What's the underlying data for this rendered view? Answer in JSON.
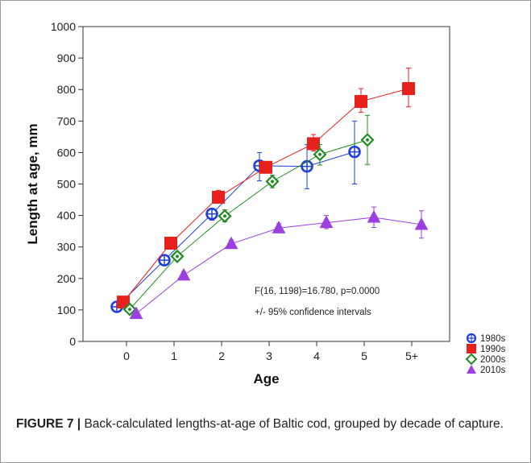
{
  "chart_data": {
    "type": "line",
    "title": "",
    "xlabel": "Age",
    "ylabel": "Length at age, mm",
    "ylim": [
      0,
      1000
    ],
    "yticks": [
      0,
      100,
      200,
      300,
      400,
      500,
      600,
      700,
      800,
      900,
      1000
    ],
    "categories": [
      "0",
      "1",
      "2",
      "3",
      "4",
      "5",
      "5+"
    ],
    "error_bars": "95% confidence intervals",
    "legend_position": "bottom-right, outside plot",
    "annotations": [
      "F(16, 1198)=16.780, p=0.0000",
      "+/- 95% confidence intervals"
    ],
    "series": [
      {
        "name": "1980s",
        "color": "#1f3fd8",
        "marker": "circle-plus",
        "values": [
          110,
          258,
          405,
          558,
          556,
          602,
          null
        ],
        "ci_low": [
          100,
          248,
          385,
          510,
          485,
          500,
          null
        ],
        "ci_high": [
          120,
          268,
          420,
          600,
          625,
          700,
          null
        ]
      },
      {
        "name": "1990s",
        "color": "#e8201c",
        "marker": "square",
        "values": [
          125,
          312,
          458,
          553,
          628,
          762,
          803
        ],
        "ci_low": [
          115,
          302,
          440,
          535,
          605,
          728,
          745
        ],
        "ci_high": [
          135,
          322,
          480,
          570,
          657,
          803,
          868
        ]
      },
      {
        "name": "2000s",
        "color": "#1e8c1e",
        "marker": "diamond",
        "values": [
          102,
          270,
          398,
          508,
          594,
          640,
          null
        ],
        "ci_low": [
          95,
          258,
          380,
          488,
          560,
          562,
          null
        ],
        "ci_high": [
          110,
          282,
          418,
          528,
          625,
          718,
          null
        ]
      },
      {
        "name": "2010s",
        "color": "#9b3fe0",
        "marker": "triangle",
        "values": [
          88,
          210,
          310,
          360,
          377,
          394,
          371
        ],
        "ci_low": [
          80,
          200,
          298,
          345,
          358,
          362,
          328
        ],
        "ci_high": [
          96,
          222,
          322,
          375,
          400,
          427,
          415
        ]
      }
    ]
  },
  "caption": {
    "label": "FIGURE 7 |",
    "text": "Back-calculated lengths-at-age of Baltic cod, grouped by decade of capture."
  }
}
